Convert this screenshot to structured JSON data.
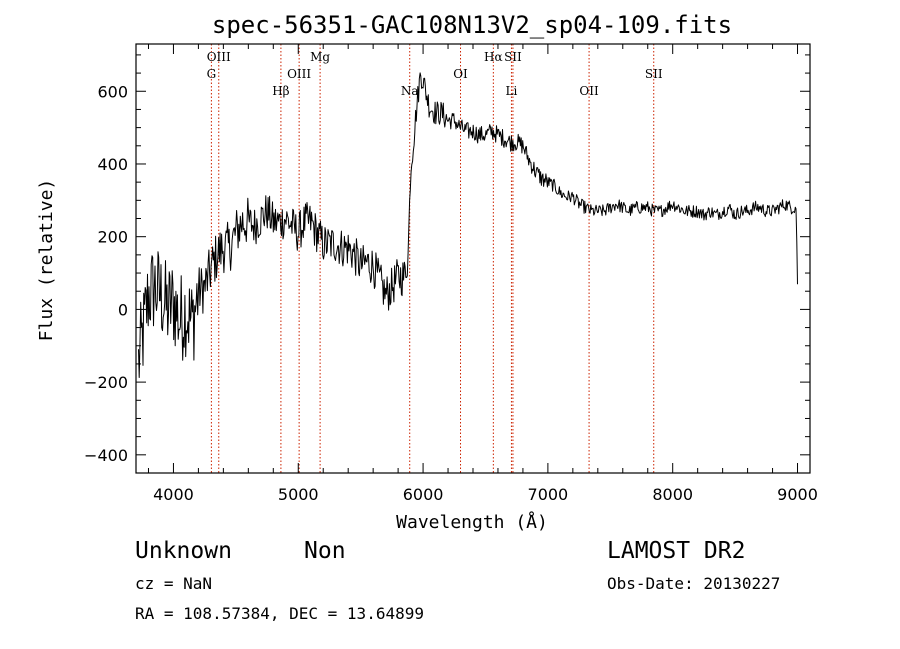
{
  "chart_data": {
    "type": "line",
    "title": "spec-56351-GAC108N13V2_sp04-109.fits",
    "xlabel": "Wavelength (Å)",
    "ylabel": "Flux (relative)",
    "xlim": [
      3700,
      9100
    ],
    "ylim": [
      -450,
      730
    ],
    "x_ticks": [
      4000,
      5000,
      6000,
      7000,
      8000,
      9000
    ],
    "y_ticks": [
      -400,
      -200,
      0,
      200,
      400,
      600
    ],
    "grid": false,
    "line_color": "#000000",
    "marker_color": "#cc2200",
    "line_markers": [
      {
        "label": "G",
        "x": 4304,
        "row": 2
      },
      {
        "label": "OIII",
        "x": 4363,
        "row": 1
      },
      {
        "label": "Hβ",
        "x": 4861,
        "row": 3
      },
      {
        "label": "OIII",
        "x": 5007,
        "row": 2
      },
      {
        "label": "Mg",
        "x": 5175,
        "row": 1
      },
      {
        "label": "Na",
        "x": 5893,
        "row": 3
      },
      {
        "label": "OI",
        "x": 6300,
        "row": 2
      },
      {
        "label": "Hα",
        "x": 6563,
        "row": 1
      },
      {
        "label": "SII",
        "x": 6720,
        "row": 1
      },
      {
        "label": "Li",
        "x": 6708,
        "row": 3
      },
      {
        "label": "OII",
        "x": 7330,
        "row": 3
      },
      {
        "label": "SII",
        "x": 7848,
        "row": 2
      }
    ],
    "series": [
      {
        "x": [
          3720,
          3760,
          3800,
          3850,
          3900,
          3950,
          4000,
          4050,
          4100,
          4150,
          4200,
          4250,
          4300,
          4350,
          4400,
          4450,
          4500,
          4550,
          4600,
          4650,
          4700,
          4750,
          4800,
          4850,
          4900,
          4950,
          5000,
          5050,
          5100,
          5150,
          5200,
          5250,
          5300,
          5350,
          5400,
          5450,
          5500,
          5550,
          5600,
          5650,
          5700,
          5750,
          5800,
          5850,
          5880,
          5900,
          5920,
          5950,
          5980,
          6000,
          6050,
          6100,
          6150,
          6200,
          6250,
          6300,
          6350,
          6400,
          6450,
          6500,
          6550,
          6600,
          6650,
          6700,
          6750,
          6800,
          6850,
          6900,
          6950,
          7000,
          7050,
          7100,
          7150,
          7200,
          7250,
          7300,
          7350,
          7400,
          7450,
          7500,
          7550,
          7600,
          7650,
          7700,
          7750,
          7800,
          7850,
          7900,
          7950,
          8000,
          8050,
          8100,
          8150,
          8200,
          8250,
          8300,
          8350,
          8400,
          8450,
          8500,
          8550,
          8600,
          8650,
          8700,
          8750,
          8800,
          8850,
          8900,
          8950,
          8990,
          9000
        ],
        "y": [
          -150,
          -60,
          40,
          60,
          40,
          0,
          20,
          -30,
          0,
          -40,
          50,
          60,
          110,
          150,
          170,
          170,
          210,
          240,
          240,
          230,
          250,
          270,
          240,
          240,
          250,
          230,
          210,
          240,
          240,
          210,
          180,
          180,
          180,
          170,
          170,
          150,
          120,
          130,
          120,
          80,
          40,
          60,
          90,
          90,
          150,
          380,
          450,
          560,
          650,
          630,
          560,
          540,
          540,
          520,
          520,
          500,
          490,
          490,
          480,
          480,
          490,
          480,
          470,
          460,
          460,
          450,
          410,
          380,
          360,
          350,
          340,
          320,
          310,
          310,
          290,
          280,
          270,
          270,
          270,
          280,
          290,
          280,
          270,
          280,
          280,
          280,
          270,
          270,
          280,
          290,
          280,
          270,
          270,
          270,
          260,
          270,
          260,
          270,
          280,
          260,
          270,
          270,
          280,
          280,
          270,
          270,
          280,
          290,
          280,
          280,
          60
        ]
      }
    ]
  },
  "footer": {
    "object_class": "Unknown",
    "object_subclass": "Non",
    "survey": "LAMOST DR2",
    "redshift": "cz = NaN",
    "obs_date": "Obs-Date: 20130227",
    "coordinates": "RA = 108.57384, DEC =  13.64899"
  }
}
